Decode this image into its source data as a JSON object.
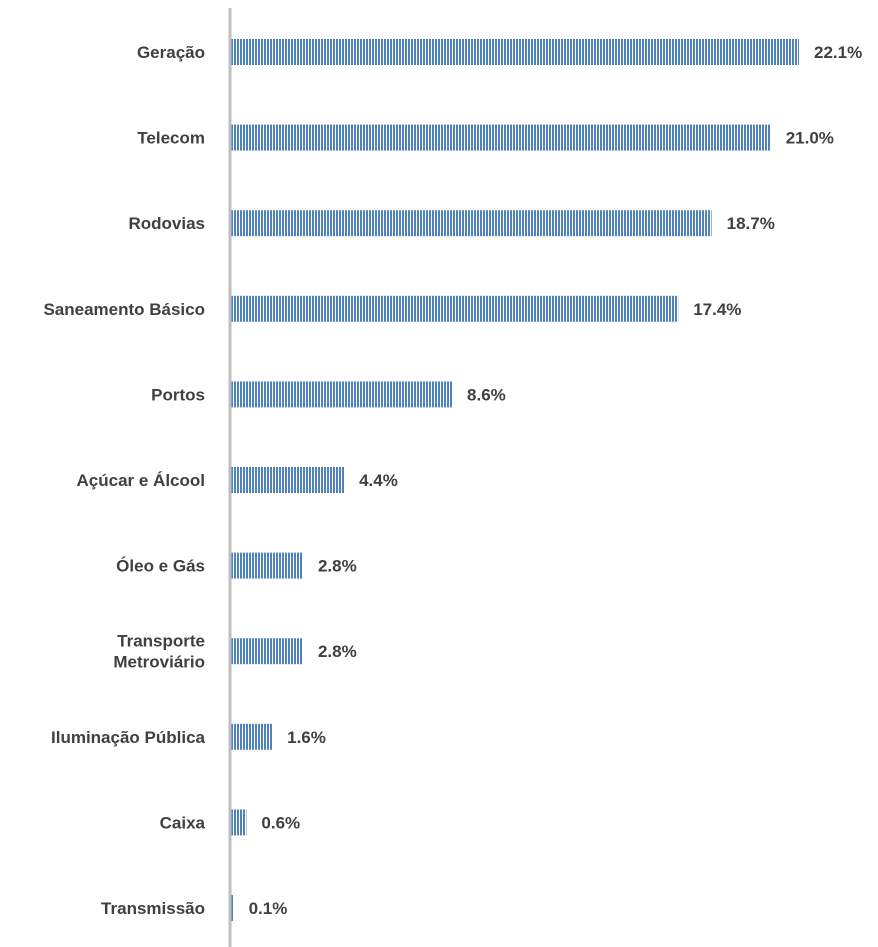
{
  "chart_data": {
    "type": "bar",
    "orientation": "horizontal",
    "categories": [
      "Geração",
      "Telecom",
      "Rodovias",
      "Saneamento Básico",
      "Portos",
      "Açúcar e Álcool",
      "Óleo e Gás",
      "Transporte Metroviário",
      "Iluminação Pública",
      "Caixa",
      "Transmissão"
    ],
    "values": [
      22.1,
      21.0,
      18.7,
      17.4,
      8.6,
      4.4,
      2.8,
      2.8,
      1.6,
      0.6,
      0.1
    ],
    "value_labels": [
      "22.1%",
      "21.0%",
      "18.7%",
      "17.4%",
      "8.6%",
      "4.4%",
      "2.8%",
      "2.8%",
      "1.6%",
      "0.6%",
      "0.1%"
    ],
    "unit": "%",
    "xlim": [
      0,
      22.1
    ],
    "title": "",
    "xlabel": "",
    "ylabel": "",
    "grid": false,
    "legend": "none",
    "bar_color": "#4f81bd",
    "bar_stripe_color": "#ffffff",
    "bar_pattern": "vertical-stripes",
    "label_color": "#404040",
    "axis_color": "#bfbfbf"
  }
}
